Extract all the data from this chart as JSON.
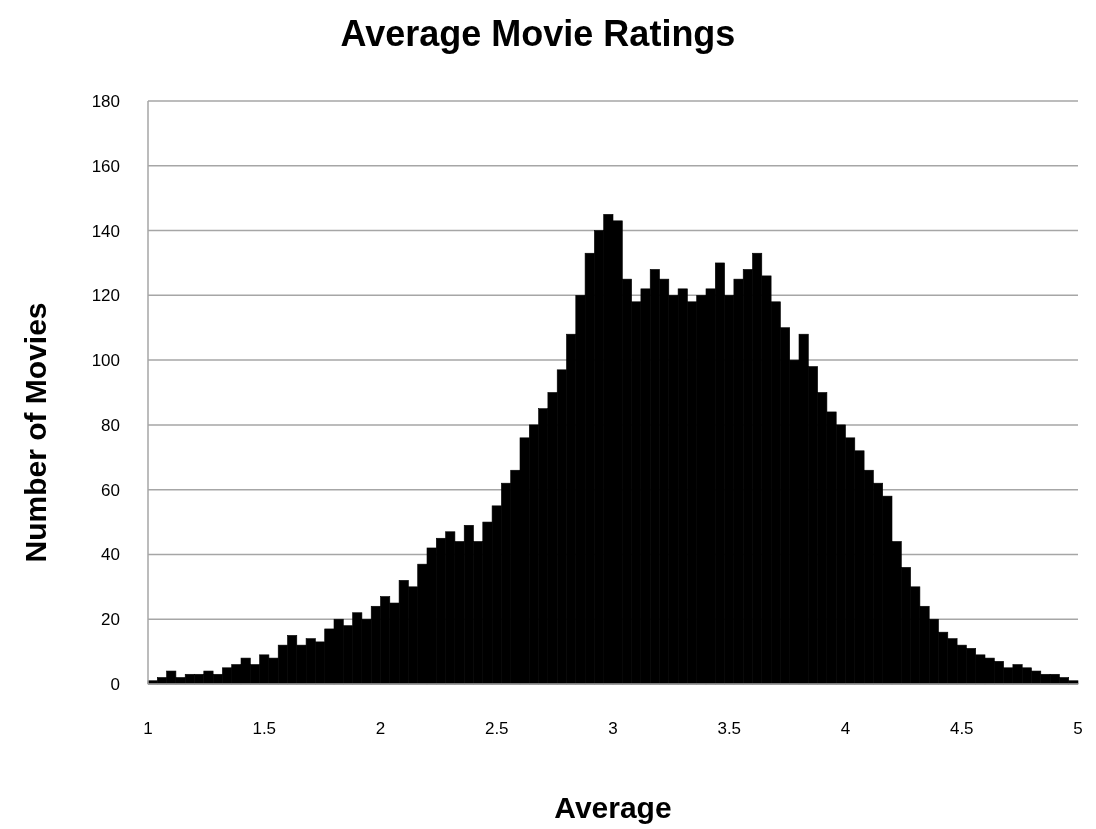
{
  "chart_data": {
    "type": "histogram",
    "title": "Average Movie Ratings",
    "xlabel": "Average",
    "ylabel": "Number of Movies",
    "color": "#000000",
    "bins": [
      1,
      1.04,
      1.08,
      1.12,
      1.16,
      1.2,
      1.24,
      1.28,
      1.32,
      1.36,
      1.4,
      1.44,
      1.48,
      1.52,
      1.56,
      1.6,
      1.64,
      1.68,
      1.72,
      1.76,
      1.8,
      1.84,
      1.88,
      1.92,
      1.96,
      2,
      2.04,
      2.08,
      2.12,
      2.16,
      2.2,
      2.24,
      2.28,
      2.32,
      2.36,
      2.4,
      2.44,
      2.48,
      2.52,
      2.56,
      2.6,
      2.64,
      2.68,
      2.72,
      2.76,
      2.8,
      2.84,
      2.88,
      2.92,
      2.96,
      3,
      3.04,
      3.08,
      3.12,
      3.16,
      3.2,
      3.24,
      3.28,
      3.32,
      3.36,
      3.4,
      3.44,
      3.48,
      3.52,
      3.56,
      3.6,
      3.64,
      3.68,
      3.72,
      3.76,
      3.8,
      3.84,
      3.88,
      3.92,
      3.96,
      4,
      4.04,
      4.08,
      4.12,
      4.16,
      4.2,
      4.24,
      4.28,
      4.32,
      4.36,
      4.4,
      4.44,
      4.48,
      4.52,
      4.56,
      4.6,
      4.64,
      4.68,
      4.72,
      4.76,
      4.8,
      4.84,
      4.88,
      4.92,
      4.96,
      5
    ],
    "values": [
      1,
      2,
      4,
      2,
      3,
      3,
      4,
      3,
      5,
      6,
      8,
      6,
      9,
      8,
      12,
      15,
      12,
      14,
      13,
      17,
      20,
      18,
      22,
      20,
      24,
      27,
      25,
      32,
      30,
      37,
      42,
      45,
      47,
      44,
      49,
      44,
      50,
      55,
      62,
      66,
      76,
      80,
      85,
      90,
      97,
      108,
      120,
      133,
      140,
      145,
      143,
      125,
      118,
      122,
      128,
      125,
      120,
      122,
      118,
      120,
      122,
      130,
      120,
      125,
      128,
      133,
      126,
      118,
      110,
      100,
      108,
      98,
      90,
      84,
      80,
      76,
      72,
      66,
      62,
      58,
      44,
      36,
      30,
      24,
      20,
      16,
      14,
      12,
      11,
      9,
      8,
      7,
      5,
      6,
      5,
      4,
      3,
      3,
      2,
      1
    ],
    "xlim": [
      1,
      5
    ],
    "xticks": [
      1,
      1.5,
      2,
      2.5,
      3,
      3.5,
      4,
      4.5,
      5
    ],
    "ylim": [
      0,
      180
    ],
    "yticks": [
      0,
      20,
      40,
      60,
      80,
      100,
      120,
      140,
      160,
      180
    ],
    "grid": "y"
  }
}
